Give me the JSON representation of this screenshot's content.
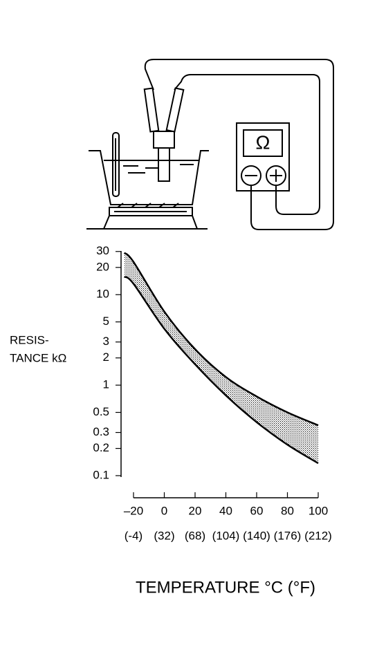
{
  "illustration": {
    "meter_symbol": "Ω"
  },
  "chart_data": {
    "type": "band",
    "ylabel": [
      "RESIS-",
      "TANCE kΩ"
    ],
    "xlabel": "TEMPERATURE °C (°F)",
    "x": [
      -26,
      -20,
      0,
      20,
      40,
      60,
      80,
      100
    ],
    "series": [
      {
        "color": "#000000",
        "values": [
          29,
          23,
          6.5,
          2.5,
          1.23,
          0.75,
          0.5,
          0.36
        ]
      },
      {
        "color": "#000000",
        "values": [
          15.8,
          13.2,
          4.2,
          1.7,
          0.77,
          0.39,
          0.22,
          0.137
        ]
      }
    ],
    "fill": "dotted",
    "xlim": [
      -20,
      100
    ],
    "xticks": [
      {
        "value": -20,
        "label": "–20"
      },
      0,
      20,
      40,
      60,
      80,
      100
    ],
    "xticks_secondary": [
      {
        "value": -20,
        "label": "(-4)"
      },
      {
        "value": 0,
        "label": "(32)"
      },
      {
        "value": 20,
        "label": "(68)"
      },
      {
        "value": 40,
        "label": "(104)"
      },
      {
        "value": 60,
        "label": "(140)"
      },
      {
        "value": 80,
        "label": "(176)"
      },
      {
        "value": 100,
        "label": "(212)"
      }
    ],
    "ylim": [
      0.1,
      35
    ],
    "ylog": true,
    "yticks": [
      30,
      20,
      10,
      5,
      3,
      2,
      1,
      0.5,
      0.3,
      0.2,
      0.1
    ]
  }
}
